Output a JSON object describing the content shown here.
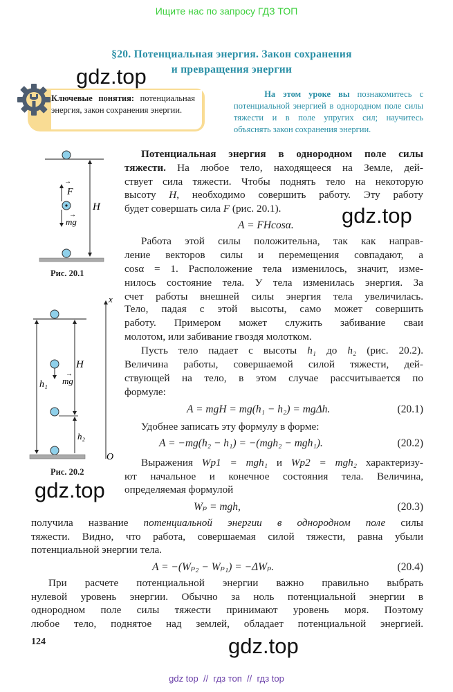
{
  "banner": "Ищите нас по запросу ГДЗ ТОП",
  "title": {
    "line1": "§20. Потенциальная энергия. Закон сохранения",
    "line2": "и превращения энергии"
  },
  "watermark": "gdz.top",
  "key_concepts": {
    "label": "Ключевые понятия:",
    "text": " потенциальная энергия, закон сохранения энергии."
  },
  "intro": {
    "bold": "На этом уроке вы",
    "text": " познакомитесь с потенциальной энергией в однородном поле силы тяжести и в поле упругих сил; научитесь объяснять закон сохранения энергии."
  },
  "colors": {
    "accent": "#2a8fa6",
    "banner": "#3ccf3c",
    "box": "#f9dc94",
    "ball": "#8fd0ea",
    "footer": "#6a3fa8"
  },
  "figures": {
    "fig1": {
      "caption": "Рис. 20.1",
      "labels": {
        "F": "F",
        "mg": "mg",
        "H": "H"
      }
    },
    "fig2": {
      "caption": "Рис. 20.2",
      "labels": {
        "x": "x",
        "O": "O",
        "H": "H",
        "h1": "h₁",
        "h2": "h₂",
        "mg": "mg"
      }
    }
  },
  "lines": [
    [
      {
        "s": "b",
        "t": "Потенциальная энергия в однородном поле силы"
      }
    ],
    [
      {
        "s": "b",
        "t": "тяжести."
      },
      {
        "s": "",
        "t": " На любое тело, находящееся на Земле, дей-"
      }
    ],
    [
      {
        "s": "",
        "t": "ствует сила тяжести. Чтобы поднять тело на некоторую"
      }
    ],
    [
      {
        "s": "",
        "t": "высоту "
      },
      {
        "s": "i",
        "t": "H"
      },
      {
        "s": "",
        "t": ", необходимо совершить работу. Эту работу"
      }
    ],
    [
      {
        "s": "",
        "t": "будет совершать сила "
      },
      {
        "s": "i",
        "t": "F"
      },
      {
        "s": "",
        "t": " (рис. 20.1)."
      }
    ],
    [
      {
        "s": "",
        "t": "Работа этой силы положительна, так как направ-"
      }
    ],
    [
      {
        "s": "",
        "t": "ление векторов силы и перемещения совпадают, а"
      }
    ],
    [
      {
        "s": "",
        "t": "cosα = 1. Расположение тела изменилось, значит, изме-"
      }
    ],
    [
      {
        "s": "",
        "t": "нилось состояние тела. У тела изменилась энергия. За"
      }
    ],
    [
      {
        "s": "",
        "t": "счет работы внешней силы энергия тела увеличилась."
      }
    ],
    [
      {
        "s": "",
        "t": "Тело, падая с этой высоты, само может совершить"
      }
    ],
    [
      {
        "s": "",
        "t": "работу. Примером может служить забивание сваи"
      }
    ],
    [
      {
        "s": "",
        "t": "молотом, или забивание гвоздя молотком."
      }
    ],
    [
      {
        "s": "",
        "t": "Пусть тело падает с высоты "
      },
      {
        "s": "i",
        "t": "h₁"
      },
      {
        "s": "",
        "t": " до "
      },
      {
        "s": "i",
        "t": "h₂"
      },
      {
        "s": "",
        "t": " (рис. 20.2)."
      }
    ],
    [
      {
        "s": "",
        "t": "Величина работы, совершаемой силой тяжести, дей-"
      }
    ],
    [
      {
        "s": "",
        "t": "ствующей на тело, в этом случае рассчитывается по"
      }
    ],
    [
      {
        "s": "",
        "t": "формуле:"
      }
    ],
    [
      {
        "s": "",
        "t": "Удобнее записать эту формулу в форме:"
      }
    ],
    [
      {
        "s": "",
        "t": "Выражения "
      },
      {
        "s": "i",
        "t": "W"
      },
      {
        "s": "i",
        "t": "p1 = mgh₁"
      },
      {
        "s": "",
        "t": " и "
      },
      {
        "s": "i",
        "t": "W"
      },
      {
        "s": "i",
        "t": "p2 = mgh₂"
      },
      {
        "s": "",
        "t": " характеризу-"
      }
    ],
    [
      {
        "s": "",
        "t": "ют начальное и конечное состояния тела. Величина,"
      }
    ],
    [
      {
        "s": "",
        "t": "определяемая формулой"
      }
    ],
    [
      {
        "s": "",
        "t": "получила название "
      },
      {
        "s": "i",
        "t": "потенциальной энергии в однородном поле"
      },
      {
        "s": "",
        "t": " силы"
      }
    ],
    [
      {
        "s": "",
        "t": "тяжести. Видно, что работа, совершаемая силой тяжести, равна убыли"
      }
    ],
    [
      {
        "s": "",
        "t": "потенциальной энергии тела."
      }
    ],
    [
      {
        "s": "",
        "t": "При расчете потенциальной энергии важно правильно выбрать"
      }
    ],
    [
      {
        "s": "",
        "t": "нулевой уровень энергии. Обычно за ноль потенциальной энергии в"
      }
    ],
    [
      {
        "s": "",
        "t": "однородном поле силы тяжести принимают уровень моря. Поэтому"
      }
    ],
    [
      {
        "s": "",
        "t": "любое тело, поднятое над землей, обладает потенциальной энергией."
      }
    ]
  ],
  "formulas": [
    {
      "text": "A = FHcosα.",
      "number": ""
    },
    {
      "text": "A = mgH = mg(h₁ − h₂) = mgΔh.",
      "number": "(20.1)"
    },
    {
      "text": "A = −mg(h₂ − h₁) = −(mgh₂ − mgh₁).",
      "number": "(20.2)"
    },
    {
      "text": "Wₚ = mgh,",
      "number": "(20.3)"
    },
    {
      "text": "A = −(Wₚ₂ − Wₚ₁) = −ΔWₚ.",
      "number": "(20.4)"
    }
  ],
  "page_number": "124",
  "footer": "gdz top  //  гдз топ  //  гдз top"
}
